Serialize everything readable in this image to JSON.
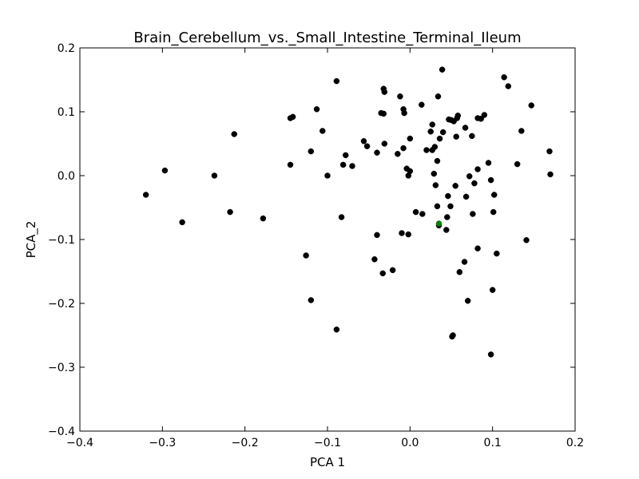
{
  "chart_data": {
    "type": "scatter",
    "title": "Brain_Cerebellum_vs._Small_Intestine_Terminal_Ileum",
    "xlabel": "PCA 1",
    "ylabel": "PCA_2",
    "xlim": [
      -0.4,
      0.2
    ],
    "ylim": [
      -0.4,
      0.2
    ],
    "xticks": [
      -0.4,
      -0.3,
      -0.2,
      -0.1,
      0.0,
      0.1,
      0.2
    ],
    "yticks": [
      -0.4,
      -0.3,
      -0.2,
      -0.1,
      0.0,
      0.1,
      0.2
    ],
    "xtick_labels": [
      "−0.4",
      "−0.3",
      "−0.2",
      "−0.1",
      "0.0",
      "0.1",
      "0.2"
    ],
    "ytick_labels": [
      "−0.4",
      "−0.3",
      "−0.2",
      "−0.1",
      "0.0",
      "0.1",
      "0.2"
    ],
    "grid": false,
    "colors": {
      "default": "#000000",
      "highlight": "#008000"
    },
    "series": [
      {
        "color": "#000000",
        "points": [
          [
            -0.32,
            -0.03
          ],
          [
            -0.297,
            0.008
          ],
          [
            -0.276,
            -0.073
          ],
          [
            -0.237,
            0.0
          ],
          [
            -0.218,
            -0.057
          ],
          [
            -0.213,
            0.065
          ],
          [
            -0.178,
            -0.067
          ],
          [
            -0.145,
            0.09
          ],
          [
            -0.142,
            0.092
          ],
          [
            -0.145,
            0.017
          ],
          [
            -0.126,
            -0.125
          ],
          [
            -0.12,
            0.038
          ],
          [
            -0.12,
            -0.195
          ],
          [
            -0.113,
            0.104
          ],
          [
            -0.106,
            0.07
          ],
          [
            -0.1,
            0.0
          ],
          [
            -0.089,
            0.148
          ],
          [
            -0.089,
            -0.241
          ],
          [
            -0.083,
            -0.065
          ],
          [
            -0.081,
            0.017
          ],
          [
            -0.078,
            0.032
          ],
          [
            -0.07,
            0.015
          ],
          [
            -0.056,
            0.054
          ],
          [
            -0.052,
            0.046
          ],
          [
            -0.043,
            -0.131
          ],
          [
            -0.04,
            0.036
          ],
          [
            -0.04,
            -0.093
          ],
          [
            -0.035,
            0.098
          ],
          [
            -0.032,
            0.136
          ],
          [
            -0.031,
            0.131
          ],
          [
            -0.032,
            0.097
          ],
          [
            -0.031,
            0.05
          ],
          [
            -0.033,
            -0.153
          ],
          [
            -0.021,
            -0.148
          ],
          [
            -0.015,
            0.034
          ],
          [
            -0.012,
            0.124
          ],
          [
            -0.008,
            0.104
          ],
          [
            -0.007,
            0.098
          ],
          [
            -0.008,
            0.043
          ],
          [
            -0.01,
            -0.09
          ],
          [
            -0.004,
            0.011
          ],
          [
            -0.002,
            0.0
          ],
          [
            0.0,
            0.007
          ],
          [
            0.0,
            0.058
          ],
          [
            -0.002,
            -0.092
          ],
          [
            0.007,
            -0.057
          ],
          [
            0.014,
            0.111
          ],
          [
            0.015,
            -0.06
          ],
          [
            0.02,
            0.04
          ],
          [
            0.025,
            0.069
          ],
          [
            0.027,
            0.08
          ],
          [
            0.027,
            0.04
          ],
          [
            0.029,
            0.003
          ],
          [
            0.03,
            0.045
          ],
          [
            0.031,
            -0.015
          ],
          [
            0.033,
            0.023
          ],
          [
            0.034,
            0.124
          ],
          [
            0.033,
            -0.048
          ],
          [
            0.036,
            0.058
          ],
          [
            0.039,
            0.166
          ],
          [
            0.04,
            0.068
          ],
          [
            0.035,
            -0.078
          ],
          [
            0.044,
            -0.085
          ],
          [
            0.045,
            -0.065
          ],
          [
            0.046,
            -0.032
          ],
          [
            0.047,
            0.088
          ],
          [
            0.049,
            -0.048
          ],
          [
            0.05,
            0.087
          ],
          [
            0.053,
            0.085
          ],
          [
            0.052,
            -0.25
          ],
          [
            0.051,
            -0.252
          ],
          [
            0.055,
            -0.016
          ],
          [
            0.056,
            0.061
          ],
          [
            0.057,
            0.09
          ],
          [
            0.058,
            0.094
          ],
          [
            0.06,
            -0.151
          ],
          [
            0.066,
            -0.135
          ],
          [
            0.067,
            0.075
          ],
          [
            0.068,
            -0.033
          ],
          [
            0.07,
            -0.196
          ],
          [
            0.072,
            -0.001
          ],
          [
            0.075,
            0.062
          ],
          [
            0.076,
            -0.06
          ],
          [
            0.078,
            -0.012
          ],
          [
            0.082,
            0.09
          ],
          [
            0.082,
            0.01
          ],
          [
            0.082,
            -0.114
          ],
          [
            0.086,
            0.089
          ],
          [
            0.09,
            0.095
          ],
          [
            0.095,
            0.02
          ],
          [
            0.098,
            -0.007
          ],
          [
            0.098,
            -0.28
          ],
          [
            0.1,
            -0.179
          ],
          [
            0.101,
            -0.057
          ],
          [
            0.102,
            -0.03
          ],
          [
            0.105,
            -0.122
          ],
          [
            0.114,
            0.154
          ],
          [
            0.119,
            0.14
          ],
          [
            0.13,
            0.018
          ],
          [
            0.135,
            0.07
          ],
          [
            0.141,
            -0.101
          ],
          [
            0.147,
            0.11
          ],
          [
            0.169,
            0.038
          ],
          [
            0.17,
            0.002
          ]
        ]
      },
      {
        "color": "#008000",
        "points": [
          [
            0.035,
            -0.075
          ]
        ]
      }
    ]
  }
}
